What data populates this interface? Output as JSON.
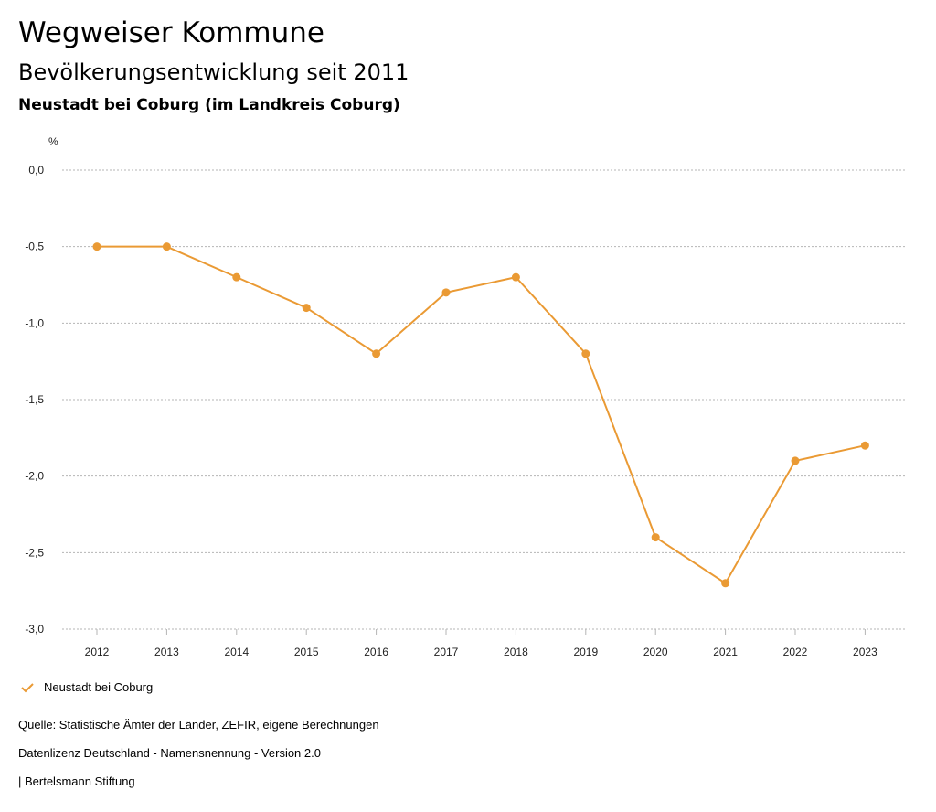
{
  "header": {
    "title": "Wegweiser Kommune",
    "subtitle": "Bevölkerungsentwicklung seit 2011",
    "place": "Neustadt bei Coburg (im Landkreis Coburg)"
  },
  "colors": {
    "series": "#ea9a34",
    "grid": "#b5b5b5",
    "text": "#222222"
  },
  "chart_data": {
    "type": "line",
    "title": "Bevölkerungsentwicklung seit 2011",
    "ylabel": "%",
    "xlabel": "",
    "ylim": [
      -3.0,
      0.0
    ],
    "yticks": [
      0.0,
      -0.5,
      -1.0,
      -1.5,
      -2.0,
      -2.5,
      -3.0
    ],
    "ytick_labels": [
      "0,0",
      "-0,5",
      "-1,0",
      "-1,5",
      "-2,0",
      "-2,5",
      "-3,0"
    ],
    "grid": true,
    "categories": [
      "2012",
      "2013",
      "2014",
      "2015",
      "2016",
      "2017",
      "2018",
      "2019",
      "2020",
      "2021",
      "2022",
      "2023"
    ],
    "series": [
      {
        "name": "Neustadt bei Coburg",
        "values": [
          -0.5,
          -0.5,
          -0.7,
          -0.9,
          -1.2,
          -0.8,
          -0.7,
          -1.2,
          -2.4,
          -2.7,
          -1.9,
          -1.8
        ]
      }
    ],
    "legend_position": "bottom-left"
  },
  "legend": {
    "label": "Neustadt bei Coburg"
  },
  "footer": {
    "source": "Quelle: Statistische Ämter der Länder, ZEFIR, eigene Berechnungen",
    "license": "Datenlizenz Deutschland - Namensnennung - Version 2.0",
    "publisher": "| Bertelsmann Stiftung"
  }
}
